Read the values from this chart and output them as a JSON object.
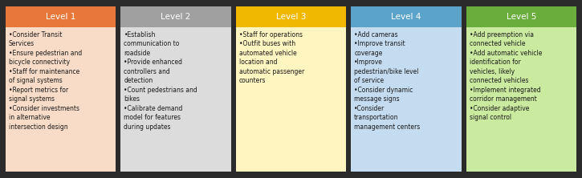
{
  "levels": [
    {
      "title": "Level 1",
      "header_color": "#E8773A",
      "body_color": "#F9DCC8",
      "text_color": "#FFFFFF",
      "body_text_color": "#1A1A1A",
      "bullets": [
        "Consider Transit\nServices",
        "Ensure pedestrian and\nbicycle connectivity",
        "Staff for maintenance\nof signal systems",
        "Report metrics for\nsignal systems",
        "Consider investments\nin alternative\nintersection design"
      ]
    },
    {
      "title": "Level 2",
      "header_color": "#A0A0A0",
      "body_color": "#DCDCDC",
      "text_color": "#FFFFFF",
      "body_text_color": "#1A1A1A",
      "bullets": [
        "Establish\ncommunication to\nroadside",
        "Provide enhanced\ncontrollers and\ndetection",
        "Count pedestrians and\nbikes",
        "Calibrate demand\nmodel for features\nduring updates"
      ]
    },
    {
      "title": "Level 3",
      "header_color": "#F0B800",
      "body_color": "#FFF5C0",
      "text_color": "#FFFFFF",
      "body_text_color": "#1A1A1A",
      "bullets": [
        "Staff for operations",
        "Outfit buses with\nautomated vehicle\nlocation and\nautomatic passenger\ncounters"
      ]
    },
    {
      "title": "Level 4",
      "header_color": "#5BA3C9",
      "body_color": "#C5DCF0",
      "text_color": "#FFFFFF",
      "body_text_color": "#1A1A1A",
      "bullets": [
        "Add cameras",
        "Improve transit\ncoverage",
        "Improve\npedestrian/bike level\nof service",
        "Consider dynamic\nmessage signs",
        "Consider\ntransportation\nmanagement centers"
      ]
    },
    {
      "title": "Level 5",
      "header_color": "#6AAD3D",
      "body_color": "#CAEAA0",
      "text_color": "#FFFFFF",
      "body_text_color": "#1A1A1A",
      "bullets": [
        "Add preemption via\nconnected vehicle",
        "Add automatic vehicle\nidentification for\nvehicles, likely\nconnected vehicles",
        "Implement integrated\ncorridor management",
        "Consider adaptive\nsignal control"
      ]
    }
  ],
  "background_color": "#2B2B2B",
  "fig_width": 7.25,
  "fig_height": 2.22,
  "dpi": 100
}
